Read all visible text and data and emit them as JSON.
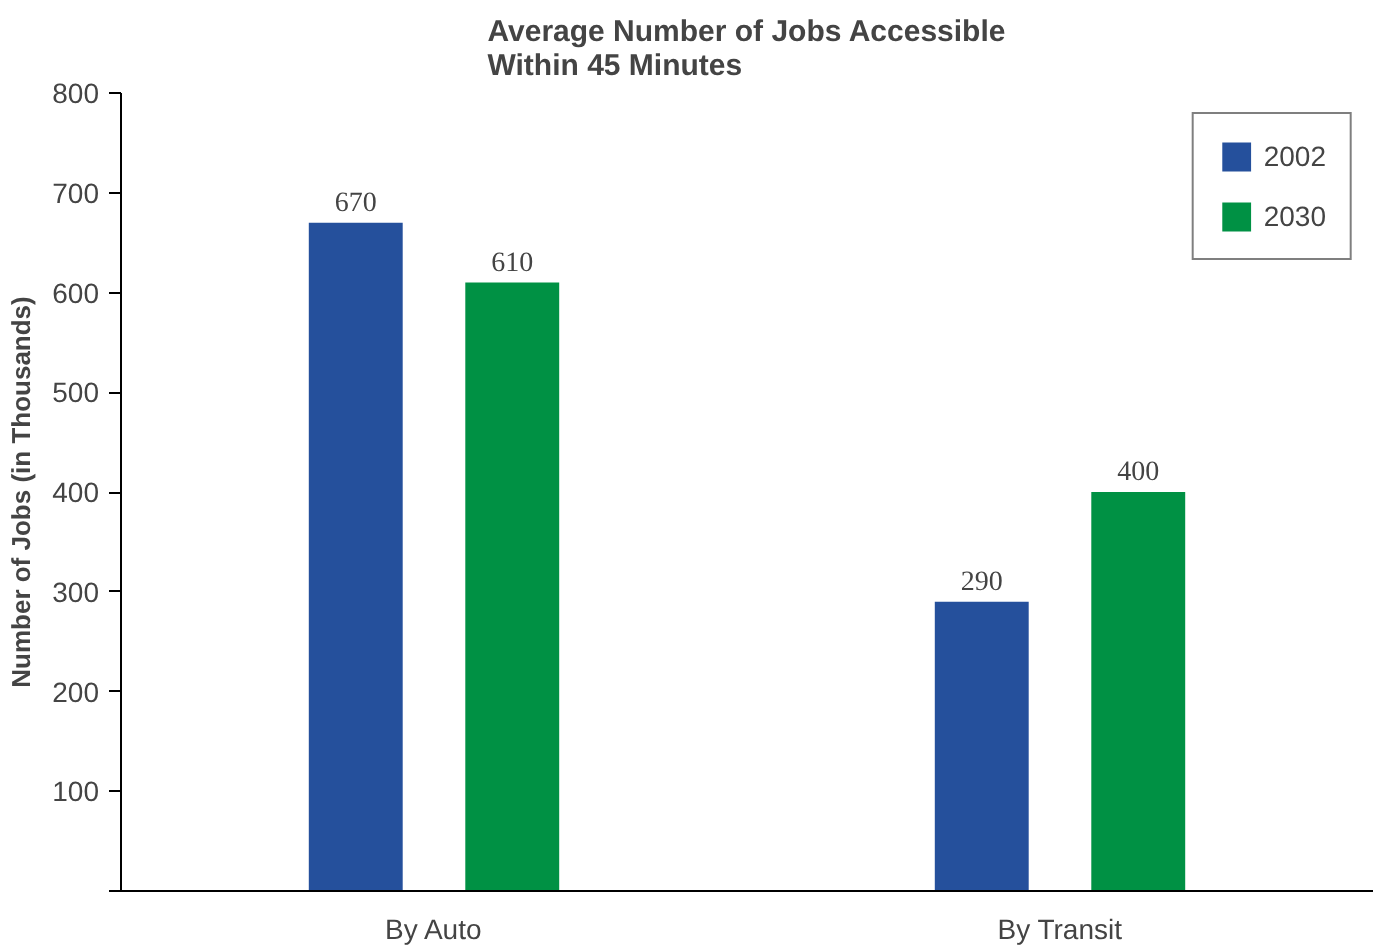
{
  "chart_data": {
    "type": "bar",
    "title": "Average Number of Jobs Accessible\nWithin 45 Minutes",
    "ylabel": "Number of Jobs (in Thousands)",
    "categories": [
      "By Auto",
      "By Transit"
    ],
    "series": [
      {
        "name": "2002",
        "color": "#25509c",
        "values": [
          670,
          290
        ]
      },
      {
        "name": "2030",
        "color": "#009144",
        "values": [
          610,
          400
        ]
      }
    ],
    "ylim": [
      0,
      800
    ],
    "yticks": [
      {
        "value": 0,
        "label": null
      },
      100,
      200,
      300,
      400,
      500,
      600,
      700,
      800
    ],
    "data_labels": true,
    "grid": false,
    "legend": "top right"
  }
}
